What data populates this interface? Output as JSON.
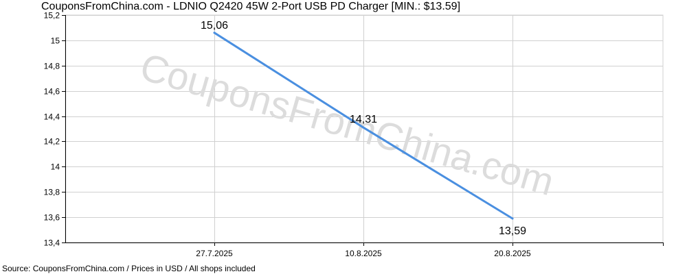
{
  "watermark": "CouponsFromChina.com",
  "footer": "Source: CouponsFromChina.com / Prices in USD / All shops included",
  "colors": {
    "line": "#4a8fe0",
    "grid": "#d0d0d0",
    "axis": "#000000",
    "background": "#ffffff"
  },
  "chart_data": {
    "type": "line",
    "title": "CouponsFromChina.com - LDNIO Q2420 45W 2-Port USB PD Charger [MIN.: $13.59]",
    "xlabel": "",
    "ylabel": "",
    "ylim": [
      13.4,
      15.2
    ],
    "y_ticks": [
      "13,4",
      "13,6",
      "13,8",
      "14",
      "14,2",
      "14,4",
      "14,6",
      "14,8",
      "15",
      "15,2"
    ],
    "y_tick_values": [
      13.4,
      13.6,
      13.8,
      14.0,
      14.2,
      14.4,
      14.6,
      14.8,
      15.0,
      15.2
    ],
    "x_tick_labels": [
      "27.7.2025",
      "10.8.2025",
      "20.8.2025"
    ],
    "grid": true,
    "series": [
      {
        "values": [
          15.06,
          14.31,
          13.59
        ],
        "labels": [
          "15,06",
          "14,31",
          "13,59"
        ]
      }
    ]
  }
}
